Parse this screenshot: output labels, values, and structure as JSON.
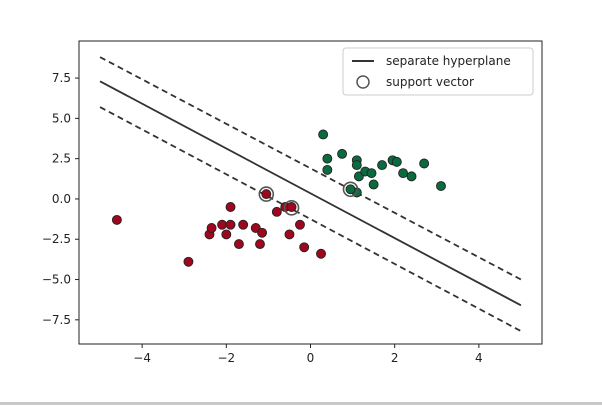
{
  "chart_data": {
    "type": "scatter",
    "xlim": [
      -5.5,
      5.5
    ],
    "ylim": [
      -9.0,
      9.8
    ],
    "xticks": [
      -4,
      -2,
      0,
      2,
      4
    ],
    "yticks": [
      7.5,
      5.0,
      2.5,
      0.0,
      -2.5,
      -5.0,
      -7.5
    ],
    "xtick_labels": [
      "−4",
      "−2",
      "0",
      "2",
      "4"
    ],
    "ytick_labels": [
      "7.5",
      "5.0",
      "2.5",
      "0.0",
      "−2.5",
      "−5.0",
      "−7.5"
    ],
    "grid": false,
    "legend_position": "top-right",
    "legend": [
      {
        "label": "separate hyperplane",
        "kind": "line"
      },
      {
        "label": "support vector",
        "kind": "circle"
      }
    ],
    "lines": [
      {
        "role": "hyperplane",
        "style": "solid",
        "x": [
          -5,
          5
        ],
        "y": [
          7.3,
          -6.6
        ]
      },
      {
        "role": "margin-upper",
        "style": "dashed",
        "x": [
          -5,
          5
        ],
        "y": [
          8.8,
          -5.0
        ]
      },
      {
        "role": "margin-lower",
        "style": "dashed",
        "x": [
          -5,
          5
        ],
        "y": [
          5.7,
          -8.2
        ]
      }
    ],
    "series": [
      {
        "color": "#0a6b3f",
        "points": [
          [
            0.3,
            4.0
          ],
          [
            0.4,
            2.5
          ],
          [
            0.4,
            1.8
          ],
          [
            0.75,
            2.8
          ],
          [
            1.1,
            2.4
          ],
          [
            1.1,
            2.1
          ],
          [
            1.15,
            1.4
          ],
          [
            1.3,
            1.7
          ],
          [
            1.45,
            1.6
          ],
          [
            1.5,
            0.9
          ],
          [
            1.7,
            2.1
          ],
          [
            1.95,
            2.4
          ],
          [
            2.05,
            2.3
          ],
          [
            2.2,
            1.6
          ],
          [
            2.4,
            1.4
          ],
          [
            2.7,
            2.2
          ],
          [
            3.1,
            0.8
          ],
          [
            1.1,
            0.4
          ],
          [
            0.95,
            0.6
          ]
        ]
      },
      {
        "color": "#a0061e",
        "points": [
          [
            -4.6,
            -1.3
          ],
          [
            -2.9,
            -3.9
          ],
          [
            -2.4,
            -2.2
          ],
          [
            -2.35,
            -1.8
          ],
          [
            -2.1,
            -1.6
          ],
          [
            -2.0,
            -2.2
          ],
          [
            -1.9,
            -0.5
          ],
          [
            -1.9,
            -1.6
          ],
          [
            -1.7,
            -2.8
          ],
          [
            -1.6,
            -1.6
          ],
          [
            -1.3,
            -1.8
          ],
          [
            -1.2,
            -2.8
          ],
          [
            -1.15,
            -2.1
          ],
          [
            -1.05,
            0.3
          ],
          [
            -0.8,
            -0.8
          ],
          [
            -0.6,
            -0.5
          ],
          [
            -0.5,
            -2.2
          ],
          [
            -0.45,
            -0.5
          ],
          [
            -0.25,
            -1.6
          ],
          [
            -0.15,
            -3.0
          ],
          [
            0.25,
            -3.4
          ]
        ]
      }
    ],
    "support_vectors": [
      [
        -1.05,
        0.3
      ],
      [
        -0.45,
        -0.55
      ],
      [
        0.95,
        0.6
      ]
    ]
  }
}
